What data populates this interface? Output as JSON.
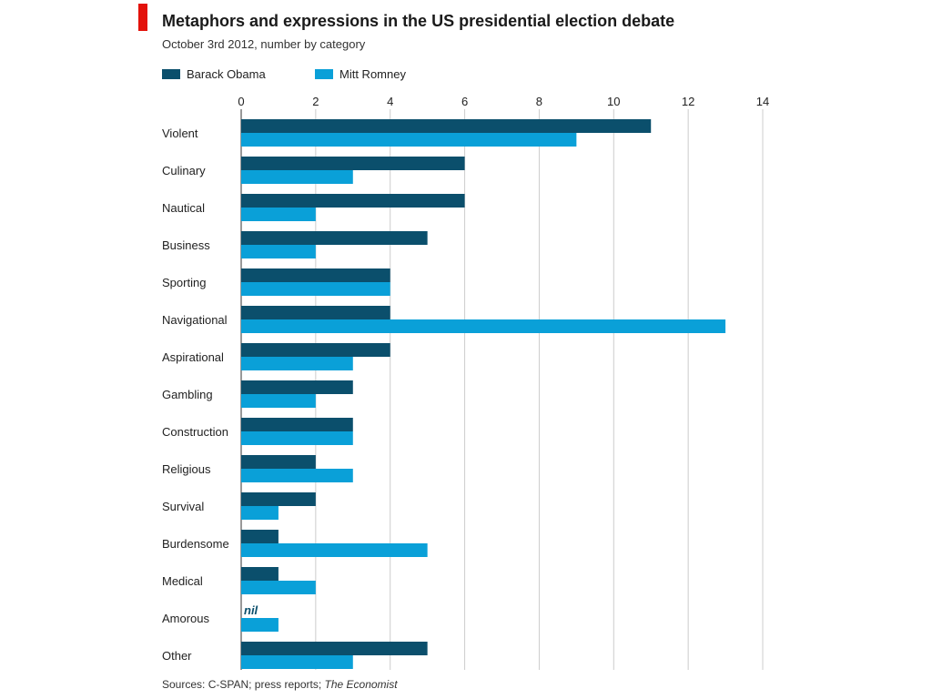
{
  "title": "Metaphors and expressions in the US presidential election debate",
  "subtitle": "October 3rd 2012, number by category",
  "source_prefix": "Sources: C-SPAN; press reports; ",
  "source_italic": "The Economist",
  "colors": {
    "accent": "#e3120b",
    "obama": "#0b4f6c",
    "romney": "#0aa0d8",
    "grid": "#cccccc"
  },
  "chart_data": {
    "type": "bar",
    "orientation": "horizontal",
    "title": "Metaphors and expressions in the US presidential election debate",
    "subtitle": "October 3rd 2012, number by category",
    "categories": [
      "Violent",
      "Culinary",
      "Nautical",
      "Business",
      "Sporting",
      "Navigational",
      "Aspirational",
      "Gambling",
      "Construction",
      "Religious",
      "Survival",
      "Burdensome",
      "Medical",
      "Amorous",
      "Other"
    ],
    "series": [
      {
        "name": "Barack Obama",
        "values": [
          11,
          6,
          6,
          5,
          4,
          4,
          4,
          3,
          3,
          2,
          2,
          1,
          1,
          0,
          5
        ]
      },
      {
        "name": "Mitt Romney",
        "values": [
          9,
          3,
          2,
          2,
          4,
          13,
          3,
          2,
          3,
          3,
          1,
          5,
          2,
          1,
          3
        ]
      }
    ],
    "xlim": [
      0,
      14
    ],
    "xticks": [
      0,
      2,
      4,
      6,
      8,
      10,
      12,
      14
    ],
    "axis_position": "top",
    "legend_placement": "top-left",
    "grid": true,
    "annotations": [
      {
        "category": "Amorous",
        "series": "Barack Obama",
        "text": "nil"
      }
    ]
  }
}
